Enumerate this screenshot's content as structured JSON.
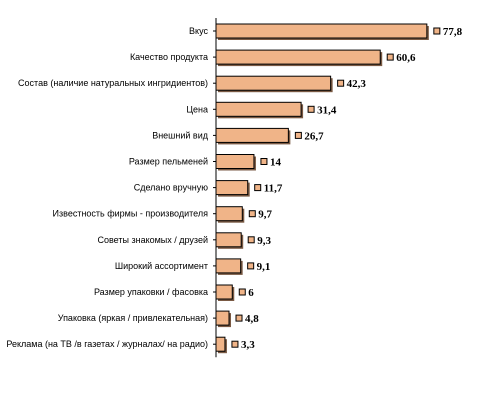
{
  "chart_data": {
    "type": "bar",
    "orientation": "horizontal",
    "title": "",
    "xlabel": "",
    "ylabel": "",
    "xlim": [
      0,
      80
    ],
    "grid": false,
    "legend": "none",
    "bar_color": "#f0b488",
    "bar_edge_color": "#000000",
    "categories": [
      "Вкус",
      "Качество продукта",
      "Состав (наличие натуральных ингридиентов)",
      "Цена",
      "Внешний вид",
      "Размер пельменей",
      "Сделано вручную",
      "Известность фирмы - производителя",
      "Советы знакомых / друзей",
      "Широкий ассортимент",
      "Размер упаковки / фасовка",
      "Упаковка (яркая / привлекательная)",
      "Реклама (на ТВ /в газетах / журналах/ на радио)"
    ],
    "values": [
      77.8,
      60.6,
      42.3,
      31.4,
      26.7,
      14,
      11.7,
      9.7,
      9.3,
      9.1,
      6,
      4.8,
      3.3
    ],
    "value_labels": [
      "77,8",
      "60,6",
      "42,3",
      "31,4",
      "26,7",
      "14",
      "11,7",
      "9,7",
      "9,3",
      "9,1",
      "6",
      "4,8",
      "3,3"
    ]
  }
}
